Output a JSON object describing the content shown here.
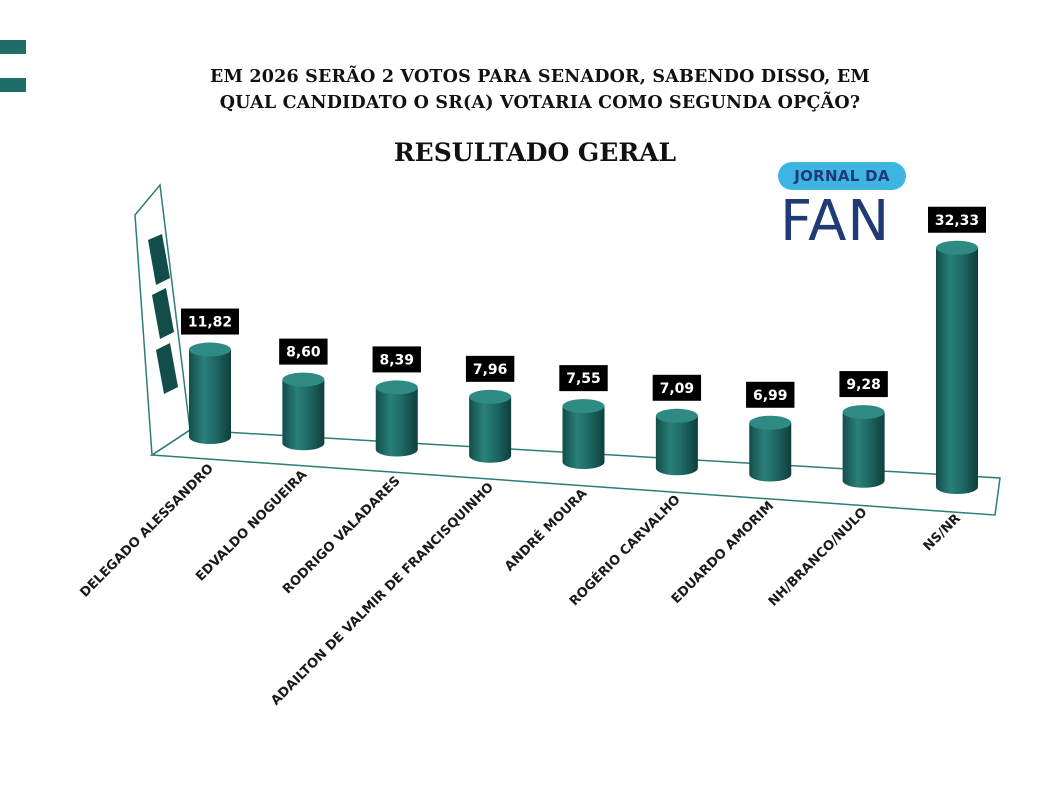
{
  "header": {
    "title_line1": "EM 2026 SERÃO 2 VOTOS PARA SENADOR, SABENDO DISSO, EM",
    "title_line2": "QUAL CANDIDATO O SR(A) VOTARIA COMO SEGUNDA OPÇÃO?",
    "subtitle": "RESULTADO GERAL"
  },
  "logo": {
    "pill_text": "JORNAL DA",
    "main_text": "FAN"
  },
  "colors": {
    "bar": "#1f6b66",
    "bar_dark": "#134d49",
    "bar_light": "#2e8a83",
    "frame": "#2e7d76",
    "label_bg": "#000000",
    "logo_pill": "#3eb4e2",
    "logo_text": "#1f3a74"
  },
  "chart_data": {
    "type": "bar",
    "style": "3d-cylinder",
    "categories": [
      "DELEGADO ALESSANDRO",
      "EDVALDO NOGUEIRA",
      "RODRIGO VALADARES",
      "ADAILTON DE VALMIR DE FRANCISQUINHO",
      "ANDRÉ MOURA",
      "ROGÉRIO CARVALHO",
      "EDUARDO AMORIM",
      "NH/BRANCO/NULO",
      "NS/NR"
    ],
    "values": [
      11.82,
      8.6,
      8.39,
      7.96,
      7.55,
      7.09,
      6.99,
      9.28,
      32.33
    ],
    "value_labels": [
      "11,82",
      "8,60",
      "8,39",
      "7,96",
      "7,55",
      "7,09",
      "6,99",
      "9,28",
      "32,33"
    ],
    "ylim": [
      0,
      35
    ],
    "grid": false,
    "legend": "none"
  }
}
